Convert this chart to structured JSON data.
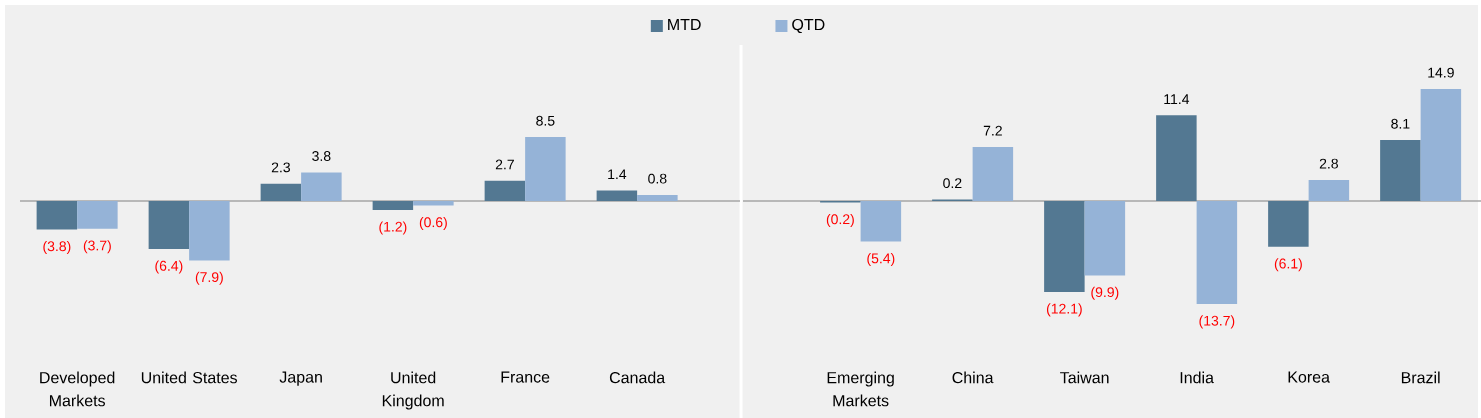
{
  "chart_data": [
    {
      "type": "bar",
      "categories": [
        "Developed Markets",
        "United States",
        "Japan",
        "United Kingdom",
        "France",
        "Canada"
      ],
      "series": [
        {
          "name": "MTD",
          "color": "#537892",
          "values": [
            -3.8,
            -6.4,
            2.3,
            -1.2,
            2.7,
            1.4
          ],
          "value_labels": [
            "(3.8)",
            "(6.4)",
            "2.3",
            "(1.2)",
            "2.7",
            "1.4"
          ]
        },
        {
          "name": "QTD",
          "color": "#95b3d7",
          "values": [
            -3.7,
            -7.9,
            3.8,
            -0.6,
            8.5,
            0.8
          ],
          "value_labels": [
            "(3.7)",
            "(7.9)",
            "3.8",
            "(0.6)",
            "8.5",
            "0.8"
          ]
        }
      ],
      "tick_labels": "x",
      "legend": "top"
    },
    {
      "type": "bar",
      "categories": [
        "Emerging Markets",
        "China",
        "Taiwan",
        "India",
        "Korea",
        "Brazil"
      ],
      "series": [
        {
          "color": "#537892",
          "values": [
            -0.2,
            0.2,
            -12.1,
            11.4,
            -6.1,
            8.1
          ],
          "value_labels": [
            "(0.2)",
            "0.2",
            "(12.1)",
            "11.4",
            "(6.1)",
            "8.1"
          ]
        },
        {
          "color": "#95b3d7",
          "values": [
            -5.4,
            7.2,
            -9.9,
            -13.7,
            2.8,
            14.9
          ],
          "value_labels": [
            "(5.4)",
            "7.2",
            "(9.9)",
            "(13.7)",
            "2.8",
            "14.9"
          ]
        }
      ],
      "tick_labels": "x"
    }
  ]
}
